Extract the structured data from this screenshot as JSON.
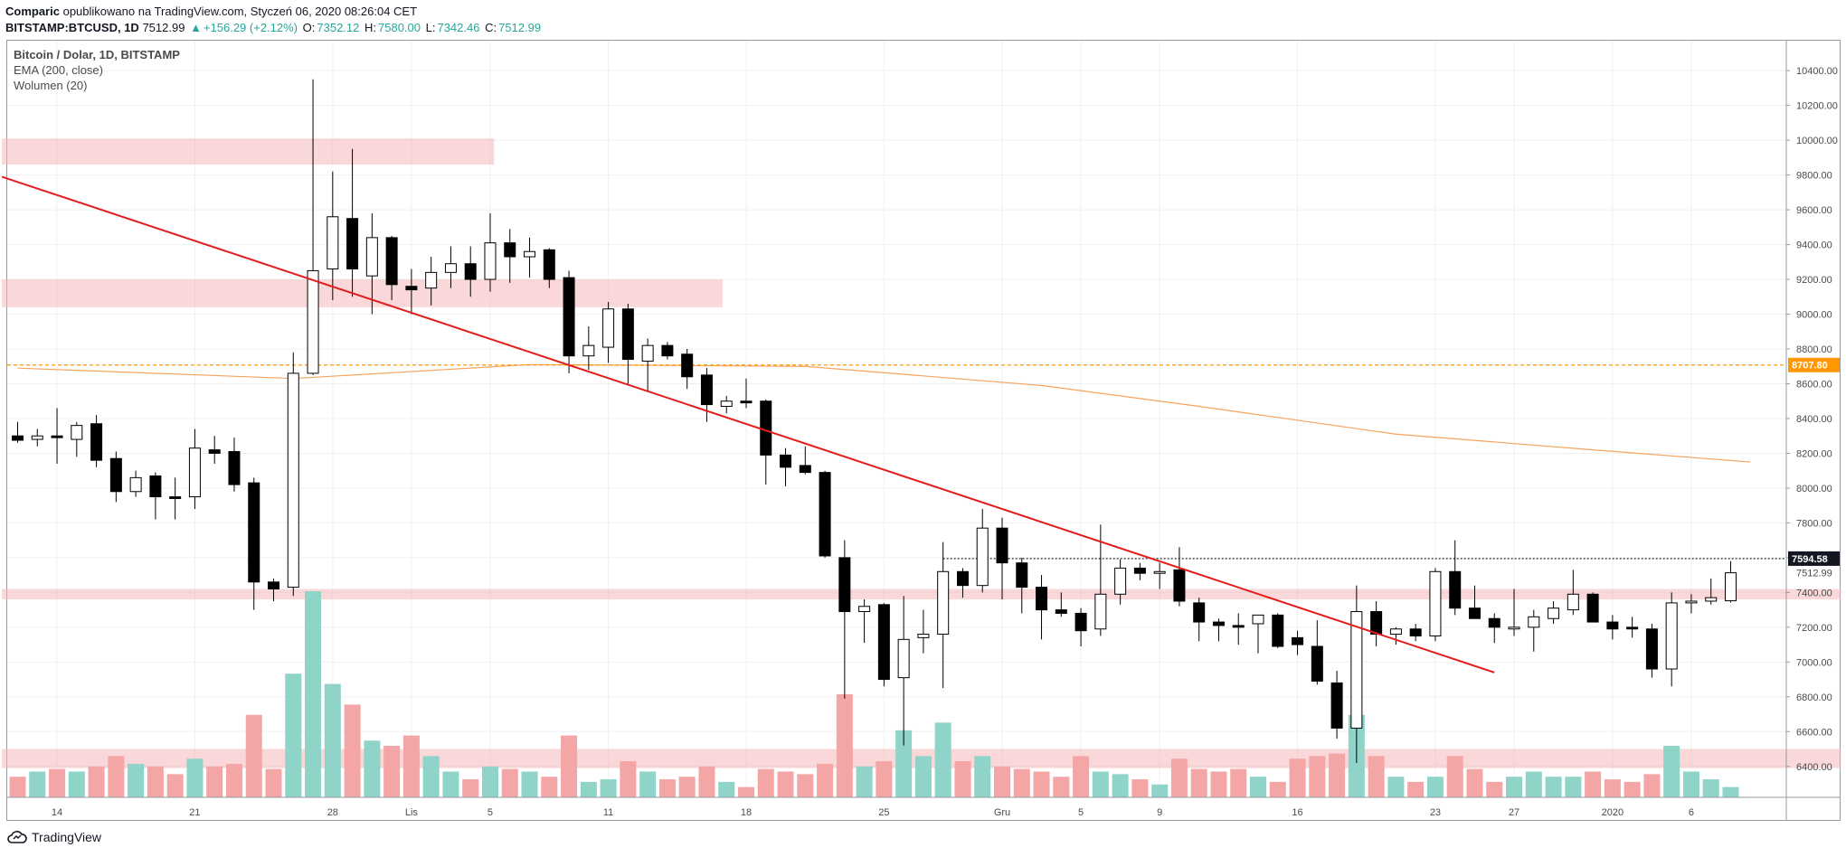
{
  "header": {
    "author": "Comparic",
    "published": "opublikowano na TradingView.com, Styczeń 06, 2020 08:26:04 CET",
    "symbol": "BITSTAMP:BTCUSD, 1D",
    "last": "7512.99",
    "change": "+156.29 (+2.12%)",
    "o_label": "O:",
    "o_value": "7352.12",
    "h_label": "H:",
    "h_value": "7580.00",
    "l_label": "L:",
    "l_value": "7342.46",
    "c_label": "C:",
    "c_value": "7512.99"
  },
  "legend": {
    "title": "Bitcoin / Dolar, 1D, BITSTAMP",
    "ema": "EMA (200, close)",
    "volume": "Wolumen (20)"
  },
  "footer": {
    "brand": "TradingView"
  },
  "colors": {
    "up_fill": "#ffffff",
    "down_fill": "#000000",
    "wick": "#000000",
    "vol_up": "#8fd3c9",
    "vol_down": "#f4a6a6",
    "zone": "#f5b7b8",
    "trend": "#e51c1c",
    "ema": "#f7a35c",
    "orange_level": "#ff9800",
    "grid": "#eef0f3"
  },
  "chart_data": {
    "type": "candlestick",
    "title": "Bitcoin / Dolar, 1D, BITSTAMP",
    "y_ticks": [
      6400,
      6600,
      6800,
      7000,
      7200,
      7400,
      7600,
      7800,
      8000,
      8200,
      8400,
      8600,
      8800,
      9000,
      9200,
      9400,
      9600,
      9800,
      10000,
      10200,
      10400
    ],
    "ylim": [
      6190,
      10500
    ],
    "x_ticks": [
      {
        "label": "14",
        "i": 2
      },
      {
        "label": "21",
        "i": 9
      },
      {
        "label": "28",
        "i": 16
      },
      {
        "label": "Lis",
        "i": 20
      },
      {
        "label": "5",
        "i": 24
      },
      {
        "label": "11",
        "i": 30
      },
      {
        "label": "18",
        "i": 37
      },
      {
        "label": "25",
        "i": 44
      },
      {
        "label": "Gru",
        "i": 50
      },
      {
        "label": "5",
        "i": 54
      },
      {
        "label": "9",
        "i": 58
      },
      {
        "label": "16",
        "i": 65
      },
      {
        "label": "23",
        "i": 72
      },
      {
        "label": "27",
        "i": 76
      },
      {
        "label": "2020",
        "i": 81
      },
      {
        "label": "6",
        "i": 85
      }
    ],
    "price_labels": [
      {
        "value": "8707.80",
        "price": 8707.8,
        "style": "orange"
      },
      {
        "value": "7594.58",
        "price": 7594.58,
        "style": "black"
      },
      {
        "value": "7512.99",
        "price": 7512.99,
        "style": "plain"
      }
    ],
    "candles": [
      {
        "o": 8300,
        "h": 8380,
        "l": 8260,
        "c": 8275,
        "v": 0.4
      },
      {
        "o": 8280,
        "h": 8340,
        "l": 8240,
        "c": 8300,
        "v": 0.5
      },
      {
        "o": 8300,
        "h": 8460,
        "l": 8140,
        "c": 8290,
        "v": 0.55
      },
      {
        "o": 8280,
        "h": 8380,
        "l": 8180,
        "c": 8360,
        "v": 0.5
      },
      {
        "o": 8370,
        "h": 8420,
        "l": 8120,
        "c": 8160,
        "v": 0.6
      },
      {
        "o": 8170,
        "h": 8210,
        "l": 7920,
        "c": 7980,
        "v": 0.8
      },
      {
        "o": 7980,
        "h": 8100,
        "l": 7950,
        "c": 8060,
        "v": 0.65
      },
      {
        "o": 8070,
        "h": 8090,
        "l": 7820,
        "c": 7950,
        "v": 0.6
      },
      {
        "o": 7950,
        "h": 8060,
        "l": 7820,
        "c": 7940,
        "v": 0.45
      },
      {
        "o": 7950,
        "h": 8340,
        "l": 7880,
        "c": 8230,
        "v": 0.75
      },
      {
        "o": 8220,
        "h": 8300,
        "l": 8140,
        "c": 8200,
        "v": 0.6
      },
      {
        "o": 8210,
        "h": 8290,
        "l": 7980,
        "c": 8020,
        "v": 0.65
      },
      {
        "o": 8030,
        "h": 8060,
        "l": 7300,
        "c": 7460,
        "v": 1.6
      },
      {
        "o": 7460,
        "h": 7480,
        "l": 7350,
        "c": 7420,
        "v": 0.55
      },
      {
        "o": 7430,
        "h": 8780,
        "l": 7380,
        "c": 8660,
        "v": 2.4
      },
      {
        "o": 8660,
        "h": 10350,
        "l": 8650,
        "c": 9250,
        "v": 4.0
      },
      {
        "o": 9260,
        "h": 9820,
        "l": 9080,
        "c": 9560,
        "v": 2.2
      },
      {
        "o": 9550,
        "h": 9950,
        "l": 9100,
        "c": 9260,
        "v": 1.8
      },
      {
        "o": 9220,
        "h": 9580,
        "l": 9000,
        "c": 9440,
        "v": 1.1
      },
      {
        "o": 9440,
        "h": 9450,
        "l": 9080,
        "c": 9170,
        "v": 1.0
      },
      {
        "o": 9160,
        "h": 9260,
        "l": 9000,
        "c": 9140,
        "v": 1.2
      },
      {
        "o": 9150,
        "h": 9330,
        "l": 9050,
        "c": 9240,
        "v": 0.8
      },
      {
        "o": 9240,
        "h": 9390,
        "l": 9150,
        "c": 9290,
        "v": 0.5
      },
      {
        "o": 9290,
        "h": 9390,
        "l": 9100,
        "c": 9200,
        "v": 0.35
      },
      {
        "o": 9200,
        "h": 9580,
        "l": 9130,
        "c": 9410,
        "v": 0.6
      },
      {
        "o": 9410,
        "h": 9490,
        "l": 9180,
        "c": 9330,
        "v": 0.55
      },
      {
        "o": 9330,
        "h": 9440,
        "l": 9210,
        "c": 9360,
        "v": 0.5
      },
      {
        "o": 9370,
        "h": 9380,
        "l": 9150,
        "c": 9200,
        "v": 0.4
      },
      {
        "o": 9210,
        "h": 9250,
        "l": 8660,
        "c": 8760,
        "v": 1.2
      },
      {
        "o": 8760,
        "h": 8930,
        "l": 8680,
        "c": 8820,
        "v": 0.3
      },
      {
        "o": 8810,
        "h": 9070,
        "l": 8720,
        "c": 9030,
        "v": 0.35
      },
      {
        "o": 9030,
        "h": 9060,
        "l": 8590,
        "c": 8740,
        "v": 0.7
      },
      {
        "o": 8730,
        "h": 8860,
        "l": 8560,
        "c": 8820,
        "v": 0.5
      },
      {
        "o": 8820,
        "h": 8840,
        "l": 8740,
        "c": 8760,
        "v": 0.35
      },
      {
        "o": 8770,
        "h": 8800,
        "l": 8570,
        "c": 8640,
        "v": 0.4
      },
      {
        "o": 8650,
        "h": 8690,
        "l": 8380,
        "c": 8480,
        "v": 0.6
      },
      {
        "o": 8470,
        "h": 8530,
        "l": 8430,
        "c": 8500,
        "v": 0.3
      },
      {
        "o": 8500,
        "h": 8630,
        "l": 8460,
        "c": 8490,
        "v": 0.2
      },
      {
        "o": 8500,
        "h": 8510,
        "l": 8020,
        "c": 8190,
        "v": 0.55
      },
      {
        "o": 8190,
        "h": 8230,
        "l": 8010,
        "c": 8120,
        "v": 0.5
      },
      {
        "o": 8130,
        "h": 8240,
        "l": 8080,
        "c": 8090,
        "v": 0.45
      },
      {
        "o": 8090,
        "h": 8100,
        "l": 7600,
        "c": 7610,
        "v": 0.65
      },
      {
        "o": 7600,
        "h": 7700,
        "l": 6790,
        "c": 7290,
        "v": 2.0
      },
      {
        "o": 7290,
        "h": 7360,
        "l": 7110,
        "c": 7320,
        "v": 0.6
      },
      {
        "o": 7330,
        "h": 7340,
        "l": 6860,
        "c": 6900,
        "v": 0.7
      },
      {
        "o": 6910,
        "h": 7380,
        "l": 6520,
        "c": 7130,
        "v": 1.3
      },
      {
        "o": 7140,
        "h": 7300,
        "l": 7050,
        "c": 7160,
        "v": 0.8
      },
      {
        "o": 7160,
        "h": 7690,
        "l": 6850,
        "c": 7520,
        "v": 1.45
      },
      {
        "o": 7520,
        "h": 7540,
        "l": 7370,
        "c": 7440,
        "v": 0.7
      },
      {
        "o": 7440,
        "h": 7880,
        "l": 7400,
        "c": 7770,
        "v": 0.8
      },
      {
        "o": 7770,
        "h": 7830,
        "l": 7360,
        "c": 7570,
        "v": 0.6
      },
      {
        "o": 7570,
        "h": 7600,
        "l": 7280,
        "c": 7430,
        "v": 0.55
      },
      {
        "o": 7430,
        "h": 7500,
        "l": 7130,
        "c": 7300,
        "v": 0.5
      },
      {
        "o": 7300,
        "h": 7400,
        "l": 7260,
        "c": 7280,
        "v": 0.4
      },
      {
        "o": 7280,
        "h": 7310,
        "l": 7090,
        "c": 7180,
        "v": 0.8
      },
      {
        "o": 7190,
        "h": 7790,
        "l": 7150,
        "c": 7390,
        "v": 0.5
      },
      {
        "o": 7390,
        "h": 7590,
        "l": 7330,
        "c": 7540,
        "v": 0.45
      },
      {
        "o": 7540,
        "h": 7570,
        "l": 7470,
        "c": 7510,
        "v": 0.35
      },
      {
        "o": 7510,
        "h": 7570,
        "l": 7420,
        "c": 7520,
        "v": 0.25
      },
      {
        "o": 7530,
        "h": 7660,
        "l": 7320,
        "c": 7350,
        "v": 0.75
      },
      {
        "o": 7340,
        "h": 7370,
        "l": 7120,
        "c": 7230,
        "v": 0.55
      },
      {
        "o": 7230,
        "h": 7250,
        "l": 7120,
        "c": 7210,
        "v": 0.5
      },
      {
        "o": 7210,
        "h": 7280,
        "l": 7100,
        "c": 7200,
        "v": 0.55
      },
      {
        "o": 7220,
        "h": 7260,
        "l": 7050,
        "c": 7270,
        "v": 0.4
      },
      {
        "o": 7270,
        "h": 7280,
        "l": 7080,
        "c": 7090,
        "v": 0.3
      },
      {
        "o": 7140,
        "h": 7180,
        "l": 7040,
        "c": 7100,
        "v": 0.75
      },
      {
        "o": 7090,
        "h": 7240,
        "l": 6870,
        "c": 6890,
        "v": 0.8
      },
      {
        "o": 6880,
        "h": 6950,
        "l": 6560,
        "c": 6620,
        "v": 0.85
      },
      {
        "o": 6620,
        "h": 7440,
        "l": 6420,
        "c": 7290,
        "v": 1.6
      },
      {
        "o": 7290,
        "h": 7350,
        "l": 7090,
        "c": 7160,
        "v": 0.8
      },
      {
        "o": 7160,
        "h": 7200,
        "l": 7100,
        "c": 7190,
        "v": 0.4
      },
      {
        "o": 7190,
        "h": 7220,
        "l": 7120,
        "c": 7150,
        "v": 0.3
      },
      {
        "o": 7150,
        "h": 7540,
        "l": 7120,
        "c": 7520,
        "v": 0.4
      },
      {
        "o": 7520,
        "h": 7700,
        "l": 7270,
        "c": 7310,
        "v": 0.8
      },
      {
        "o": 7310,
        "h": 7440,
        "l": 7250,
        "c": 7250,
        "v": 0.55
      },
      {
        "o": 7250,
        "h": 7280,
        "l": 7110,
        "c": 7200,
        "v": 0.3
      },
      {
        "o": 7190,
        "h": 7420,
        "l": 7150,
        "c": 7200,
        "v": 0.4
      },
      {
        "o": 7200,
        "h": 7300,
        "l": 7060,
        "c": 7260,
        "v": 0.5
      },
      {
        "o": 7250,
        "h": 7350,
        "l": 7220,
        "c": 7310,
        "v": 0.4
      },
      {
        "o": 7300,
        "h": 7530,
        "l": 7270,
        "c": 7390,
        "v": 0.4
      },
      {
        "o": 7390,
        "h": 7400,
        "l": 7230,
        "c": 7230,
        "v": 0.5
      },
      {
        "o": 7230,
        "h": 7270,
        "l": 7130,
        "c": 7190,
        "v": 0.35
      },
      {
        "o": 7200,
        "h": 7260,
        "l": 7140,
        "c": 7190,
        "v": 0.3
      },
      {
        "o": 7190,
        "h": 7220,
        "l": 6910,
        "c": 6960,
        "v": 0.45
      },
      {
        "o": 6960,
        "h": 7400,
        "l": 6860,
        "c": 7340,
        "v": 1.0
      },
      {
        "o": 7340,
        "h": 7390,
        "l": 7280,
        "c": 7350,
        "v": 0.5
      },
      {
        "o": 7350,
        "h": 7480,
        "l": 7330,
        "c": 7370,
        "v": 0.35
      },
      {
        "o": 7352.12,
        "h": 7580,
        "l": 7342.46,
        "c": 7512.99,
        "v": 0.2
      }
    ],
    "ema_points": [
      {
        "i": 0,
        "p": 8690
      },
      {
        "i": 14,
        "p": 8630
      },
      {
        "i": 26,
        "p": 8710
      },
      {
        "i": 40,
        "p": 8700
      },
      {
        "i": 52,
        "p": 8590
      },
      {
        "i": 60,
        "p": 8470
      },
      {
        "i": 70,
        "p": 8310
      },
      {
        "i": 80,
        "p": 8220
      },
      {
        "i": 88,
        "p": 8150
      }
    ],
    "zones": [
      {
        "from_i": -0.8,
        "to_i": 24.2,
        "low": 9860,
        "high": 10010
      },
      {
        "from_i": -0.8,
        "to_i": 35.8,
        "low": 9040,
        "high": 9200
      },
      {
        "from_i": -0.8,
        "to_i": 92.6,
        "low": 7360,
        "high": 7420
      },
      {
        "from_i": -0.8,
        "to_i": 92.6,
        "low": 6390,
        "high": 6500
      }
    ],
    "trendline": [
      {
        "i": -0.8,
        "p": 9790
      },
      {
        "i": 75.0,
        "p": 6940
      }
    ],
    "horizontal_levels": [
      {
        "price": 8707.8,
        "style": "orange-dashed"
      },
      {
        "price": 7594.58,
        "style": "black-dotted",
        "from_i": 47
      }
    ]
  }
}
